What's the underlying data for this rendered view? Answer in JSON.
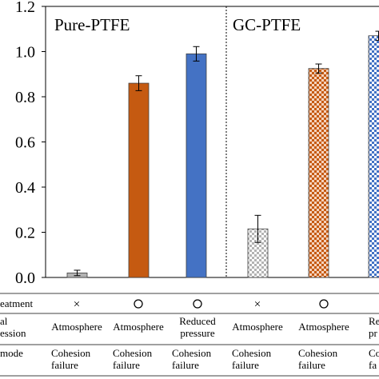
{
  "chart_data": {
    "type": "bar",
    "groups": [
      {
        "label": "Pure-PTFE",
        "bars": [
          {
            "value": 0.02,
            "error": 0.012,
            "color": "#b3b3b3",
            "pattern": "solid"
          },
          {
            "value": 0.86,
            "error": 0.033,
            "color": "#c55a11",
            "pattern": "solid"
          },
          {
            "value": 0.99,
            "error": 0.032,
            "color": "#4472c4",
            "pattern": "solid"
          }
        ]
      },
      {
        "label": "GC-PTFE",
        "bars": [
          {
            "value": 0.215,
            "error": 0.06,
            "color": "#b3b3b3",
            "pattern": "checker"
          },
          {
            "value": 0.925,
            "error": 0.02,
            "color": "#c55a11",
            "pattern": "checker"
          },
          {
            "value": 1.07,
            "error": 0.02,
            "color": "#4472c4",
            "pattern": "checker"
          }
        ]
      }
    ],
    "ylim": [
      0,
      1.2
    ],
    "yticks": [
      "0.0",
      "0.2",
      "0.4",
      "0.6",
      "0.8",
      "1.0",
      "1.2"
    ],
    "ylabel": ""
  },
  "table": {
    "rows": [
      {
        "header": "eatment",
        "cells": [
          "×",
          "○",
          "○",
          "×",
          "○",
          ""
        ]
      },
      {
        "header_lines": [
          "al",
          "ession"
        ],
        "cells": [
          [
            "Atmosphere"
          ],
          [
            "Atmosphere"
          ],
          [
            "Reduced",
            "pressure"
          ],
          [
            "Atmosphere"
          ],
          [
            "Atmosphere"
          ],
          [
            "Re",
            "pr"
          ]
        ]
      },
      {
        "header": "mode",
        "cells": [
          [
            "Cohesion",
            "failure"
          ],
          [
            "Cohesion",
            "failure"
          ],
          [
            "Cohesion",
            "failure"
          ],
          [
            "Cohesion",
            "failure"
          ],
          [
            "Cohesion",
            "failure"
          ],
          [
            "Co",
            "fa"
          ]
        ]
      }
    ]
  }
}
